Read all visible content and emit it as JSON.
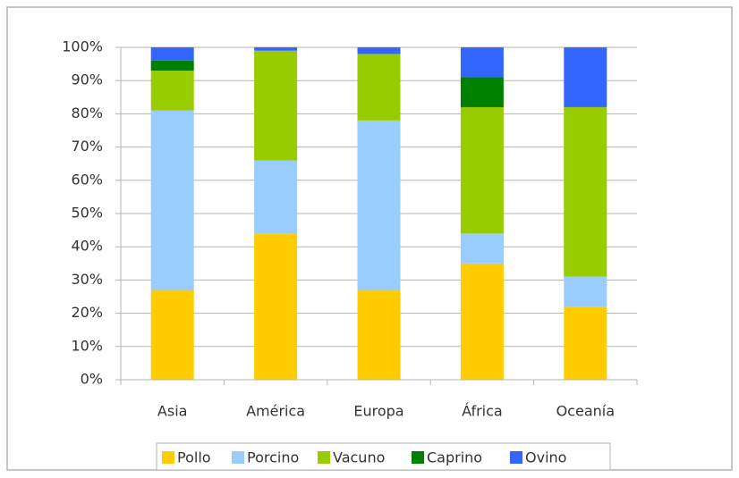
{
  "chart_data": {
    "type": "stacked_bar",
    "categories": [
      "Asia",
      "América",
      "Europa",
      "África",
      "Oceanía"
    ],
    "series": [
      {
        "name": "Pollo",
        "color": "#ffcc00",
        "values": [
          27,
          44,
          27,
          35,
          22
        ]
      },
      {
        "name": "Porcino",
        "color": "#99ccff",
        "values": [
          54,
          22,
          51,
          9,
          9
        ]
      },
      {
        "name": "Vacuno",
        "color": "#99cc00",
        "values": [
          12,
          33,
          20,
          38,
          51
        ]
      },
      {
        "name": "Caprino",
        "color": "#008000",
        "values": [
          3,
          0,
          0,
          9,
          0
        ]
      },
      {
        "name": "Ovino",
        "color": "#3366ff",
        "values": [
          4,
          1,
          2,
          9,
          18
        ]
      }
    ],
    "ylim": [
      0,
      100
    ],
    "yticks": [
      {
        "value": 0,
        "label": "0%"
      },
      {
        "value": 10,
        "label": "10%"
      },
      {
        "value": 20,
        "label": "20%"
      },
      {
        "value": 30,
        "label": "30%"
      },
      {
        "value": 40,
        "label": "40%"
      },
      {
        "value": 50,
        "label": "50%"
      },
      {
        "value": 60,
        "label": "60%"
      },
      {
        "value": 70,
        "label": "70%"
      },
      {
        "value": 80,
        "label": "80%"
      },
      {
        "value": 90,
        "label": "90%"
      },
      {
        "value": 100,
        "label": "100%"
      }
    ],
    "grid": true,
    "legend": "bottom"
  }
}
